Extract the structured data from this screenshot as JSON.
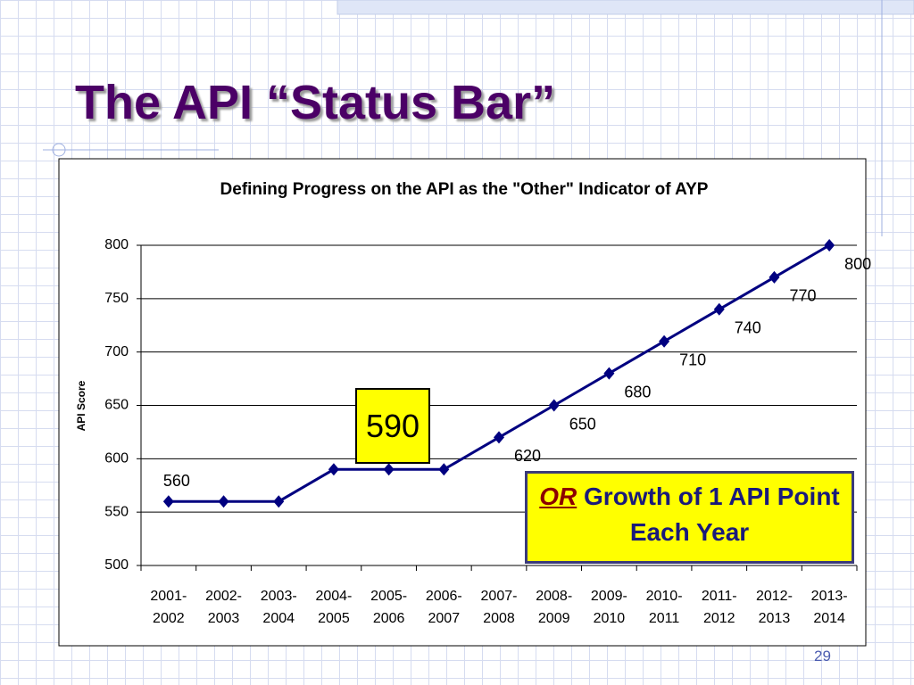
{
  "slide_title": "The API “Status Bar”",
  "page_number": "29",
  "chart_data": {
    "type": "line",
    "title": "Defining Progress on the API as the \"Other\" Indicator of AYP",
    "y_label": "API Score",
    "categories": [
      "2001-2002",
      "2002-2003",
      "2003-2004",
      "2004-2005",
      "2005-2006",
      "2006-2007",
      "2007-2008",
      "2008-2009",
      "2009-2010",
      "2010-2011",
      "2011-2012",
      "2012-2013",
      "2013-2014"
    ],
    "series": [
      {
        "name": "API Score",
        "color": "#000080",
        "values": [
          560,
          560,
          560,
          590,
          590,
          590,
          620,
          650,
          680,
          710,
          740,
          770,
          800
        ]
      }
    ],
    "ylim": [
      500,
      800
    ],
    "yticks": [
      500,
      550,
      600,
      650,
      700,
      750,
      800
    ],
    "grid": true,
    "annotation": {
      "emphasis": "OR",
      "text": "Growth of 1 API Point Each Year"
    }
  }
}
